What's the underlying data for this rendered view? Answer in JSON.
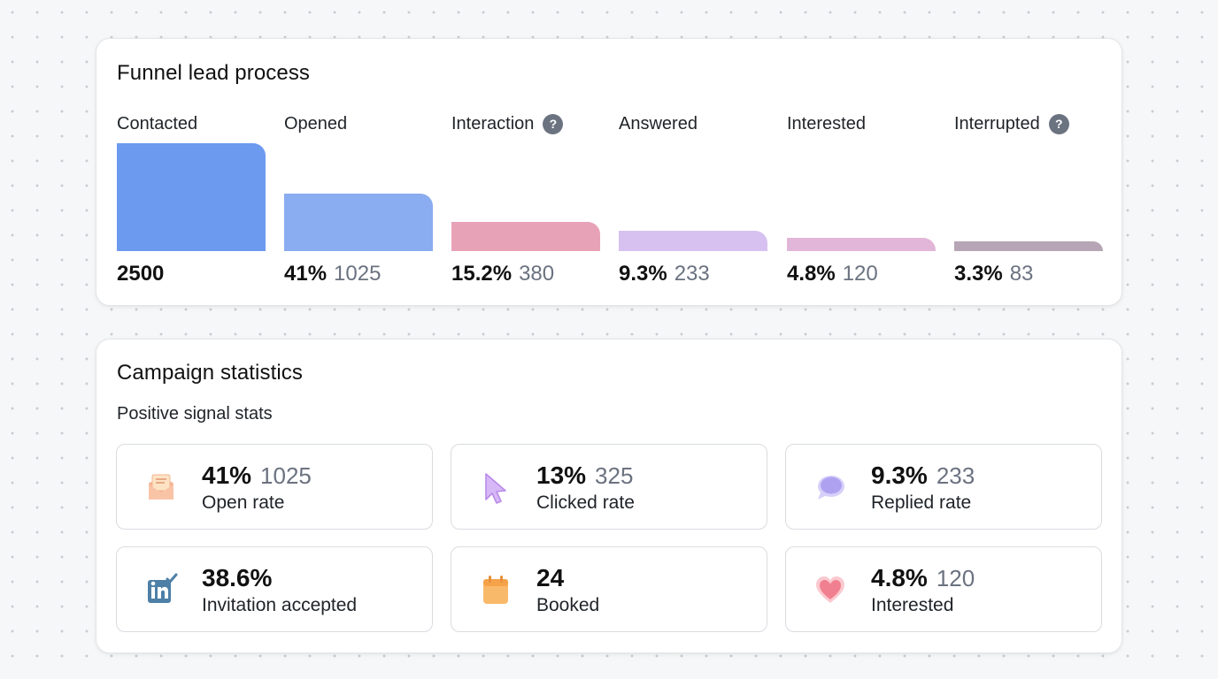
{
  "funnel": {
    "title": "Funnel lead process",
    "stages": [
      {
        "label": "Contacted",
        "help": false,
        "percent": "",
        "count": "2500",
        "value": 2500,
        "color": "#6c9aef"
      },
      {
        "label": "Opened",
        "help": false,
        "percent": "41%",
        "count": "1025",
        "value": 1025,
        "color": "#8aacf0"
      },
      {
        "label": "Interaction",
        "help": true,
        "percent": "15.2%",
        "count": "380",
        "value": 380,
        "color": "#e8a2b8"
      },
      {
        "label": "Answered",
        "help": false,
        "percent": "9.3%",
        "count": "233",
        "value": 233,
        "color": "#d7c1f1"
      },
      {
        "label": "Interested",
        "help": false,
        "percent": "4.8%",
        "count": "120",
        "value": 120,
        "color": "#e2b6d9"
      },
      {
        "label": "Interrupted",
        "help": true,
        "percent": "3.3%",
        "count": "83",
        "value": 83,
        "color": "#b6a6b5"
      }
    ],
    "help_glyph": "?"
  },
  "stats": {
    "title": "Campaign statistics",
    "subtitle": "Positive signal stats",
    "tiles": [
      {
        "icon": "envelope-icon",
        "percent": "41%",
        "count": "1025",
        "label": "Open rate"
      },
      {
        "icon": "cursor-icon",
        "percent": "13%",
        "count": "325",
        "label": "Clicked rate"
      },
      {
        "icon": "chat-bubble-icon",
        "percent": "9.3%",
        "count": "233",
        "label": "Replied rate"
      },
      {
        "icon": "linkedin-check-icon",
        "percent": "38.6%",
        "count": "",
        "label": "Invitation accepted"
      },
      {
        "icon": "calendar-icon",
        "percent": "24",
        "count": "",
        "label": "Booked"
      },
      {
        "icon": "heart-icon",
        "percent": "4.8%",
        "count": "120",
        "label": "Interested"
      }
    ]
  }
}
